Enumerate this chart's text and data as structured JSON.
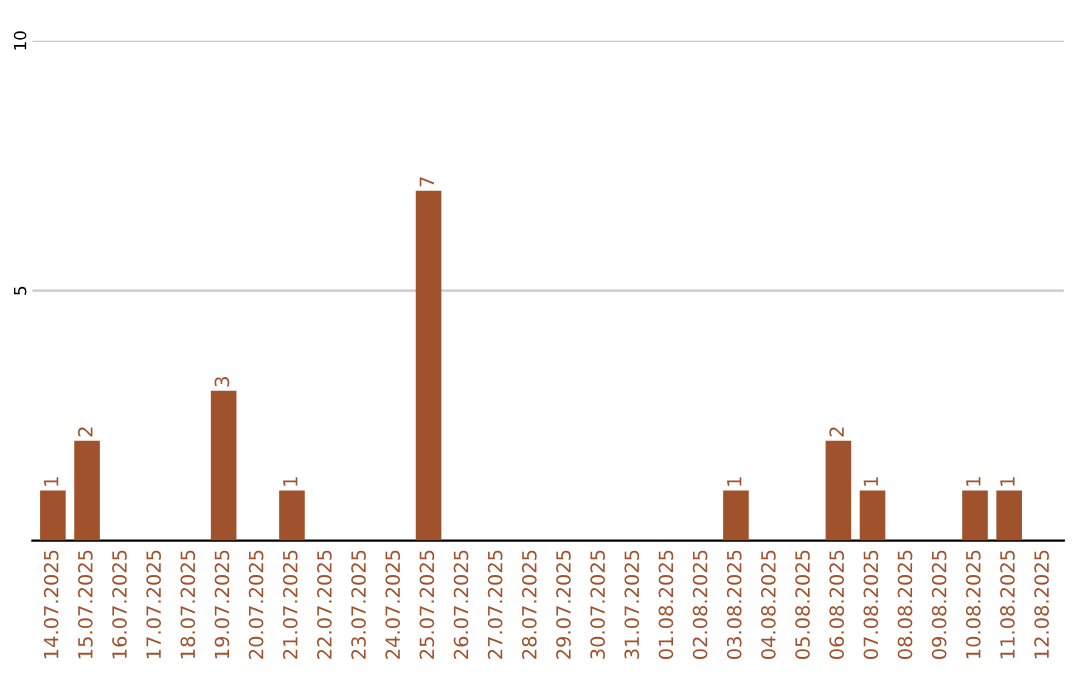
{
  "chart_data": {
    "type": "bar",
    "categories": [
      "14.07.2025",
      "15.07.2025",
      "16.07.2025",
      "17.07.2025",
      "18.07.2025",
      "19.07.2025",
      "20.07.2025",
      "21.07.2025",
      "22.07.2025",
      "23.07.2025",
      "24.07.2025",
      "25.07.2025",
      "26.07.2025",
      "27.07.2025",
      "28.07.2025",
      "29.07.2025",
      "30.07.2025",
      "31.07.2025",
      "01.08.2025",
      "02.08.2025",
      "03.08.2025",
      "04.08.2025",
      "05.08.2025",
      "06.08.2025",
      "07.08.2025",
      "08.08.2025",
      "09.08.2025",
      "10.08.2025",
      "11.08.2025",
      "12.08.2025"
    ],
    "values": [
      1,
      2,
      0,
      0,
      0,
      3,
      0,
      1,
      0,
      0,
      0,
      7,
      0,
      0,
      0,
      0,
      0,
      0,
      0,
      0,
      1,
      0,
      0,
      2,
      1,
      0,
      0,
      1,
      1,
      0
    ],
    "value_labels": [
      "1",
      "2",
      null,
      null,
      null,
      "3",
      null,
      "1",
      null,
      null,
      null,
      "7",
      null,
      null,
      null,
      null,
      null,
      null,
      null,
      null,
      "1",
      null,
      null,
      "2",
      "1",
      null,
      null,
      "1",
      "1",
      null
    ],
    "color": "#a0522d",
    "ylim": [
      0,
      10
    ],
    "yticks": [
      5,
      10
    ],
    "grid": "y"
  }
}
